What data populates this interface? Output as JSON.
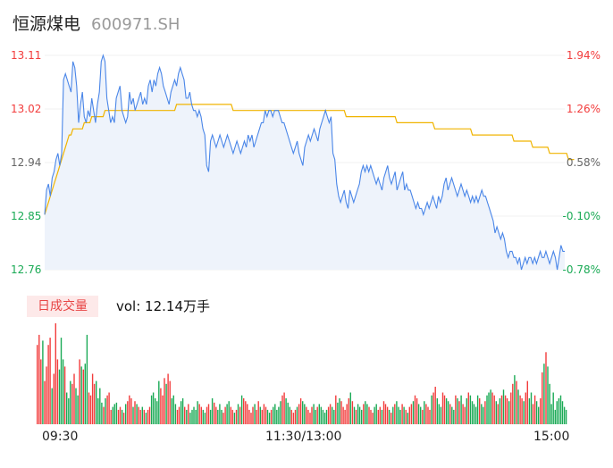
{
  "header": {
    "name": "恒源煤电",
    "code": "600971.SH"
  },
  "volume_panel": {
    "tag": "日成交量",
    "vol_label": "vol: 12.14万手"
  },
  "colors": {
    "price": "#4a86e8",
    "avg": "#f0b400",
    "up": "#f23c3c",
    "down": "#1aaa55",
    "fill": "#eef3fb"
  },
  "chart_data": [
    {
      "type": "line",
      "title": "",
      "y_left_ticks": [
        "13.11",
        "13.02",
        "12.94",
        "12.85",
        "12.76"
      ],
      "y_right_ticks": [
        "1.94%",
        "1.26%",
        "0.58%",
        "-0.10%",
        "-0.78%"
      ],
      "y_left_tick_colors": [
        "#f23c3c",
        "#f23c3c",
        "#666666",
        "#1aaa55",
        "#1aaa55"
      ],
      "y_right_tick_colors": [
        "#f23c3c",
        "#f23c3c",
        "#666666",
        "#1aaa55",
        "#1aaa55"
      ],
      "ylim": [
        12.76,
        13.11
      ],
      "x_ticks": [
        "09:30",
        "11:30/13:00",
        "15:00"
      ],
      "series": [
        {
          "values": [
            12.85,
            12.89,
            12.9,
            12.88,
            12.91,
            12.92,
            12.94,
            12.95,
            12.93,
            12.95,
            13.07,
            13.08,
            13.07,
            13.06,
            13.05,
            13.1,
            13.09,
            13.06,
            13.0,
            13.03,
            13.05,
            13.01,
            13.0,
            13.02,
            13.01,
            13.04,
            13.02,
            13.0,
            13.03,
            13.05,
            13.1,
            13.11,
            13.1,
            13.04,
            13.02,
            13.0,
            13.01,
            13.0,
            13.04,
            13.05,
            13.06,
            13.02,
            13.01,
            13.0,
            13.01,
            13.05,
            13.03,
            13.04,
            13.02,
            13.03,
            13.04,
            13.05,
            13.03,
            13.04,
            13.03,
            13.06,
            13.07,
            13.05,
            13.07,
            13.06,
            13.08,
            13.09,
            13.08,
            13.06,
            13.05,
            13.04,
            13.03,
            13.05,
            13.06,
            13.07,
            13.06,
            13.08,
            13.09,
            13.08,
            13.07,
            13.04,
            13.04,
            13.05,
            13.03,
            13.02,
            13.02,
            13.01,
            13.02,
            13.01,
            12.99,
            12.98,
            12.93,
            12.92,
            12.97,
            12.98,
            12.97,
            12.96,
            12.97,
            12.98,
            12.97,
            12.96,
            12.97,
            12.98,
            12.97,
            12.96,
            12.95,
            12.96,
            12.97,
            12.96,
            12.95,
            12.96,
            12.97,
            12.96,
            12.98,
            12.97,
            12.98,
            12.96,
            12.97,
            12.98,
            12.99,
            13.0,
            13.0,
            13.02,
            13.01,
            13.02,
            13.02,
            13.01,
            13.02,
            13.02,
            13.02,
            13.01,
            13.0,
            13.0,
            12.99,
            12.98,
            12.97,
            12.96,
            12.95,
            12.96,
            12.97,
            12.95,
            12.94,
            12.93,
            12.96,
            12.97,
            12.98,
            12.97,
            12.98,
            12.99,
            12.98,
            12.97,
            12.99,
            13.0,
            13.01,
            13.02,
            13.01,
            13.0,
            13.01,
            12.95,
            12.94,
            12.9,
            12.88,
            12.87,
            12.88,
            12.89,
            12.87,
            12.86,
            12.89,
            12.88,
            12.87,
            12.88,
            12.89,
            12.9,
            12.92,
            12.93,
            12.92,
            12.93,
            12.92,
            12.93,
            12.92,
            12.91,
            12.9,
            12.91,
            12.9,
            12.89,
            12.91,
            12.92,
            12.93,
            12.91,
            12.9,
            12.91,
            12.92,
            12.89,
            12.9,
            12.91,
            12.92,
            12.89,
            12.9,
            12.89,
            12.89,
            12.88,
            12.87,
            12.86,
            12.87,
            12.86,
            12.86,
            12.85,
            12.86,
            12.87,
            12.86,
            12.87,
            12.88,
            12.87,
            12.86,
            12.88,
            12.87,
            12.88,
            12.9,
            12.91,
            12.89,
            12.9,
            12.91,
            12.9,
            12.89,
            12.88,
            12.89,
            12.9,
            12.89,
            12.88,
            12.89,
            12.88,
            12.87,
            12.88,
            12.87,
            12.88,
            12.87,
            12.88,
            12.89,
            12.88,
            12.88,
            12.87,
            12.86,
            12.85,
            12.84,
            12.82,
            12.83,
            12.82,
            12.81,
            12.82,
            12.81,
            12.79,
            12.78,
            12.79,
            12.79,
            12.78,
            12.78,
            12.77,
            12.78,
            12.76,
            12.77,
            12.78,
            12.77,
            12.78,
            12.78,
            12.77,
            12.78,
            12.77,
            12.78,
            12.79,
            12.78,
            12.78,
            12.79,
            12.78,
            12.77,
            12.78,
            12.79,
            12.78,
            12.76,
            12.78,
            12.8,
            12.79,
            12.79
          ]
        },
        {
          "values": [
            12.85,
            12.86,
            12.87,
            12.88,
            12.89,
            12.9,
            12.91,
            12.92,
            12.93,
            12.94,
            12.95,
            12.96,
            12.97,
            12.98,
            12.98,
            12.99,
            12.99,
            12.99,
            12.99,
            12.99,
            12.99,
            13.0,
            13.0,
            13.0,
            13.0,
            13.01,
            13.01,
            13.01,
            13.01,
            13.01,
            13.01,
            13.01,
            13.02,
            13.02,
            13.02,
            13.02,
            13.02,
            13.02,
            13.02,
            13.02,
            13.02,
            13.02,
            13.02,
            13.02,
            13.02,
            13.02,
            13.02,
            13.02,
            13.02,
            13.02,
            13.02,
            13.02,
            13.02,
            13.02,
            13.02,
            13.02,
            13.02,
            13.02,
            13.02,
            13.02,
            13.02,
            13.02,
            13.02,
            13.02,
            13.02,
            13.02,
            13.02,
            13.02,
            13.02,
            13.02,
            13.03,
            13.03,
            13.03,
            13.03,
            13.03,
            13.03,
            13.03,
            13.03,
            13.03,
            13.03,
            13.03,
            13.03,
            13.03,
            13.03,
            13.03,
            13.03,
            13.03,
            13.03,
            13.03,
            13.03,
            13.03,
            13.03,
            13.03,
            13.03,
            13.03,
            13.03,
            13.03,
            13.03,
            13.03,
            13.03,
            13.02,
            13.02,
            13.02,
            13.02,
            13.02,
            13.02,
            13.02,
            13.02,
            13.02,
            13.02,
            13.02,
            13.02,
            13.02,
            13.02,
            13.02,
            13.02,
            13.02,
            13.02,
            13.02,
            13.02,
            13.02,
            13.02,
            13.02,
            13.02,
            13.02,
            13.02,
            13.02,
            13.02,
            13.02,
            13.02,
            13.02,
            13.02,
            13.02,
            13.02,
            13.02,
            13.02,
            13.02,
            13.02,
            13.02,
            13.02,
            13.02,
            13.02,
            13.02,
            13.02,
            13.02,
            13.02,
            13.02,
            13.02,
            13.02,
            13.02,
            13.02,
            13.02,
            13.02,
            13.02,
            13.02,
            13.02,
            13.02,
            13.02,
            13.02,
            13.02,
            13.01,
            13.01,
            13.01,
            13.01,
            13.01,
            13.01,
            13.01,
            13.01,
            13.01,
            13.01,
            13.01,
            13.01,
            13.01,
            13.01,
            13.01,
            13.01,
            13.01,
            13.01,
            13.01,
            13.01,
            13.01,
            13.01,
            13.01,
            13.01,
            13.01,
            13.01,
            13.01,
            13.0,
            13.0,
            13.0,
            13.0,
            13.0,
            13.0,
            13.0,
            13.0,
            13.0,
            13.0,
            13.0,
            13.0,
            13.0,
            13.0,
            13.0,
            13.0,
            13.0,
            13.0,
            13.0,
            13.0,
            12.99,
            12.99,
            12.99,
            12.99,
            12.99,
            12.99,
            12.99,
            12.99,
            12.99,
            12.99,
            12.99,
            12.99,
            12.99,
            12.99,
            12.99,
            12.99,
            12.99,
            12.99,
            12.99,
            12.99,
            12.98,
            12.98,
            12.98,
            12.98,
            12.98,
            12.98,
            12.98,
            12.98,
            12.98,
            12.98,
            12.98,
            12.98,
            12.98,
            12.98,
            12.98,
            12.98,
            12.98,
            12.98,
            12.98,
            12.98,
            12.98,
            12.98,
            12.97,
            12.97,
            12.97,
            12.97,
            12.97,
            12.97,
            12.97,
            12.97,
            12.97,
            12.97,
            12.96,
            12.96,
            12.96,
            12.96,
            12.96,
            12.96,
            12.96,
            12.96,
            12.96,
            12.95,
            12.95,
            12.95,
            12.95,
            12.95,
            12.95,
            12.95,
            12.95,
            12.95,
            12.95,
            12.94,
            12.94,
            12.94,
            12.94
          ]
        }
      ]
    },
    {
      "type": "bar",
      "title": "",
      "series": [
        {
          "values": [
            0.55,
            0.62,
            0.45,
            0.58,
            0.3,
            0.4,
            0.55,
            0.6,
            0.25,
            0.35,
            0.7,
            0.45,
            0.38,
            0.6,
            0.45,
            0.4,
            0.22,
            0.18,
            0.3,
            0.28,
            0.35,
            0.25,
            0.2,
            0.45,
            0.4,
            0.38,
            0.42,
            0.62,
            0.22,
            0.2,
            0.35,
            0.28,
            0.3,
            0.18,
            0.25,
            0.15,
            0.12,
            0.18,
            0.2,
            0.22,
            0.1,
            0.12,
            0.14,
            0.15,
            0.1,
            0.12,
            0.1,
            0.08,
            0.14,
            0.16,
            0.2,
            0.18,
            0.12,
            0.16,
            0.14,
            0.12,
            0.1,
            0.12,
            0.1,
            0.08,
            0.1,
            0.12,
            0.2,
            0.22,
            0.18,
            0.16,
            0.3,
            0.25,
            0.2,
            0.32,
            0.28,
            0.35,
            0.3,
            0.18,
            0.2,
            0.14,
            0.1,
            0.12,
            0.16,
            0.18,
            0.12,
            0.1,
            0.14,
            0.08,
            0.1,
            0.12,
            0.1,
            0.16,
            0.14,
            0.12,
            0.1,
            0.08,
            0.12,
            0.14,
            0.1,
            0.18,
            0.15,
            0.12,
            0.1,
            0.14,
            0.1,
            0.08,
            0.12,
            0.14,
            0.16,
            0.12,
            0.1,
            0.08,
            0.1,
            0.14,
            0.12,
            0.2,
            0.18,
            0.16,
            0.14,
            0.1,
            0.08,
            0.12,
            0.14,
            0.1,
            0.16,
            0.12,
            0.1,
            0.14,
            0.12,
            0.1,
            0.08,
            0.1,
            0.12,
            0.14,
            0.1,
            0.12,
            0.16,
            0.2,
            0.22,
            0.18,
            0.15,
            0.12,
            0.1,
            0.08,
            0.1,
            0.12,
            0.14,
            0.18,
            0.16,
            0.14,
            0.12,
            0.1,
            0.08,
            0.12,
            0.14,
            0.1,
            0.12,
            0.14,
            0.12,
            0.1,
            0.08,
            0.1,
            0.12,
            0.14,
            0.12,
            0.1,
            0.2,
            0.15,
            0.18,
            0.16,
            0.12,
            0.1,
            0.14,
            0.18,
            0.22,
            0.16,
            0.12,
            0.1,
            0.14,
            0.12,
            0.1,
            0.14,
            0.16,
            0.14,
            0.12,
            0.1,
            0.08,
            0.12,
            0.14,
            0.1,
            0.12,
            0.1,
            0.16,
            0.14,
            0.12,
            0.1,
            0.08,
            0.12,
            0.14,
            0.16,
            0.12,
            0.1,
            0.14,
            0.12,
            0.1,
            0.08,
            0.12,
            0.14,
            0.16,
            0.2,
            0.18,
            0.14,
            0.12,
            0.1,
            0.16,
            0.14,
            0.12,
            0.1,
            0.2,
            0.22,
            0.26,
            0.18,
            0.14,
            0.12,
            0.22,
            0.2,
            0.18,
            0.16,
            0.14,
            0.12,
            0.1,
            0.2,
            0.18,
            0.16,
            0.2,
            0.14,
            0.12,
            0.18,
            0.22,
            0.2,
            0.16,
            0.14,
            0.12,
            0.2,
            0.18,
            0.14,
            0.12,
            0.16,
            0.2,
            0.22,
            0.24,
            0.22,
            0.2,
            0.16,
            0.14,
            0.18,
            0.2,
            0.24,
            0.2,
            0.18,
            0.16,
            0.22,
            0.28,
            0.34,
            0.3,
            0.24,
            0.2,
            0.18,
            0.16,
            0.22,
            0.3,
            0.18,
            0.22,
            0.14,
            0.2,
            0.16,
            0.12,
            0.18,
            0.36,
            0.42,
            0.5,
            0.4,
            0.28,
            0.14,
            0.22,
            0.1,
            0.16,
            0.18,
            0.2,
            0.16,
            0.12,
            0.1
          ]
        }
      ]
    }
  ]
}
